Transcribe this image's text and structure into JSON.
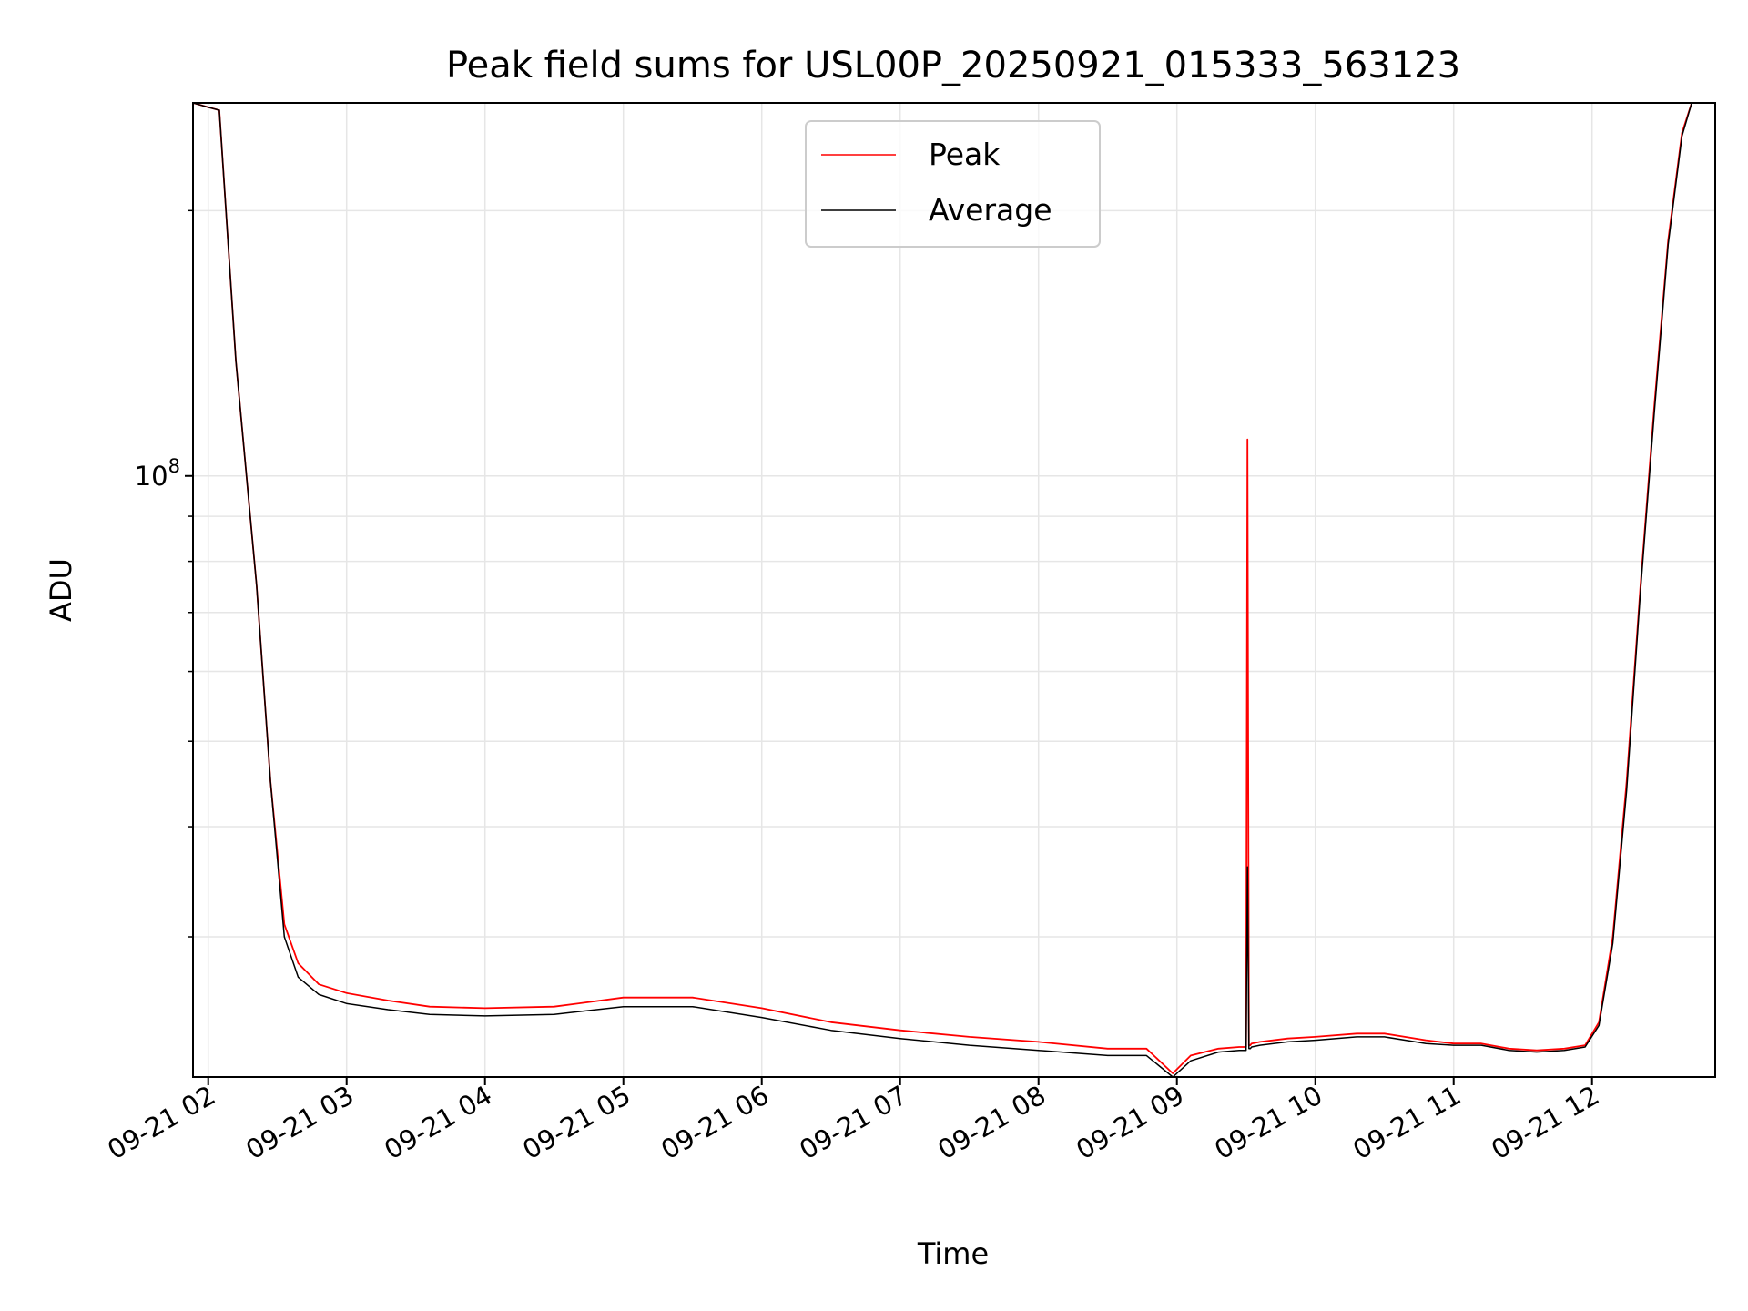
{
  "chart_data": {
    "type": "line",
    "title": "Peak field sums for USL00P_20250921_015333_563123",
    "xlabel": "Time",
    "ylabel": "ADU",
    "yscale": "log",
    "ylim": [
      20800000,
      265000000
    ],
    "xlim": [
      1.89,
      12.89
    ],
    "grid": true,
    "legend_position": "top-center",
    "x_ticks": [
      {
        "value": 2,
        "label": "09-21 02"
      },
      {
        "value": 3,
        "label": "09-21 03"
      },
      {
        "value": 4,
        "label": "09-21 04"
      },
      {
        "value": 5,
        "label": "09-21 05"
      },
      {
        "value": 6,
        "label": "09-21 06"
      },
      {
        "value": 7,
        "label": "09-21 07"
      },
      {
        "value": 8,
        "label": "09-21 08"
      },
      {
        "value": 9,
        "label": "09-21 09"
      },
      {
        "value": 10,
        "label": "09-21 10"
      },
      {
        "value": 11,
        "label": "09-21 11"
      },
      {
        "value": 12,
        "label": "09-21 12"
      }
    ],
    "y_major_ticks": [
      {
        "value": 100000000,
        "base": "10",
        "exp": "8"
      }
    ],
    "y_minor_ticks": [
      30000000,
      40000000,
      50000000,
      60000000,
      70000000,
      80000000,
      90000000,
      200000000
    ],
    "series": [
      {
        "name": "Peak",
        "color": "#ff0000",
        "x": [
          1.89,
          2.0,
          2.08,
          2.2,
          2.35,
          2.45,
          2.55,
          2.65,
          2.8,
          3.0,
          3.3,
          3.6,
          4.0,
          4.5,
          5.0,
          5.5,
          6.0,
          6.5,
          7.0,
          7.5,
          8.0,
          8.5,
          8.78,
          8.97,
          9.1,
          9.3,
          9.45,
          9.5,
          9.51,
          9.52,
          9.53,
          9.54,
          9.6,
          9.8,
          10.0,
          10.3,
          10.5,
          10.8,
          11.0,
          11.2,
          11.4,
          11.6,
          11.8,
          11.95,
          12.05,
          12.15,
          12.25,
          12.35,
          12.45,
          12.55,
          12.65,
          12.72,
          12.89
        ],
        "y": [
          265000000,
          262000000,
          260000000,
          135000000,
          75000000,
          45000000,
          31000000,
          28000000,
          26500000,
          25900000,
          25400000,
          25000000,
          24900000,
          25000000,
          25600000,
          25600000,
          24900000,
          24000000,
          23500000,
          23100000,
          22800000,
          22400000,
          22400000,
          21000000,
          22000000,
          22400000,
          22500000,
          22500000,
          110000000,
          22600000,
          22600000,
          22700000,
          22800000,
          23000000,
          23100000,
          23300000,
          23300000,
          22900000,
          22700000,
          22700000,
          22400000,
          22300000,
          22400000,
          22600000,
          24000000,
          30000000,
          45000000,
          75000000,
          120000000,
          185000000,
          245000000,
          265000000,
          265000000
        ]
      },
      {
        "name": "Average",
        "color": "#000000",
        "x": [
          1.89,
          2.0,
          2.08,
          2.2,
          2.35,
          2.45,
          2.55,
          2.65,
          2.8,
          3.0,
          3.3,
          3.6,
          4.0,
          4.5,
          5.0,
          5.5,
          6.0,
          6.5,
          7.0,
          7.5,
          8.0,
          8.5,
          8.78,
          8.97,
          9.1,
          9.3,
          9.45,
          9.5,
          9.51,
          9.52,
          9.53,
          9.54,
          9.6,
          9.8,
          10.0,
          10.3,
          10.5,
          10.8,
          11.0,
          11.2,
          11.4,
          11.6,
          11.8,
          11.95,
          12.05,
          12.15,
          12.25,
          12.35,
          12.45,
          12.55,
          12.65,
          12.72,
          12.89
        ],
        "y": [
          265000000,
          262000000,
          260000000,
          135000000,
          75000000,
          45000000,
          30000000,
          27000000,
          25800000,
          25200000,
          24800000,
          24500000,
          24400000,
          24500000,
          25000000,
          25000000,
          24300000,
          23500000,
          23000000,
          22600000,
          22300000,
          22000000,
          22000000,
          20800000,
          21700000,
          22200000,
          22300000,
          22300000,
          36000000,
          22400000,
          22400000,
          22500000,
          22600000,
          22800000,
          22900000,
          23100000,
          23100000,
          22700000,
          22600000,
          22600000,
          22300000,
          22200000,
          22300000,
          22500000,
          23800000,
          29500000,
          44000000,
          74000000,
          118000000,
          183000000,
          243000000,
          265000000,
          265000000
        ]
      }
    ]
  }
}
